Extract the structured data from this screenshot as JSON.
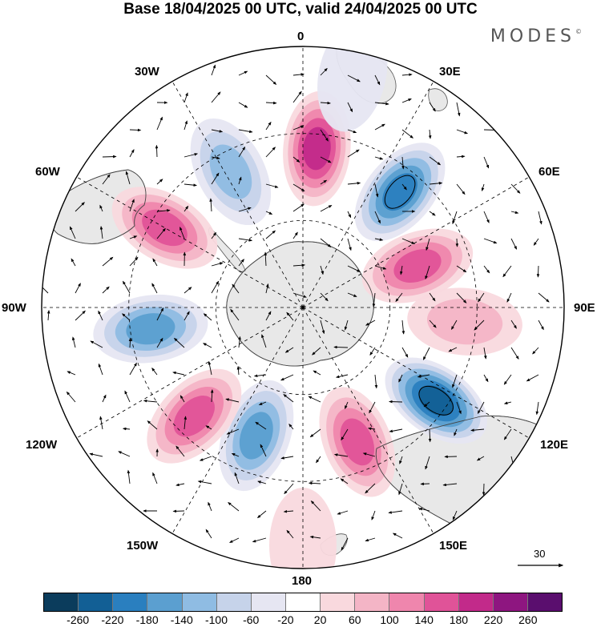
{
  "title": "Base 18/04/2025 00 UTC, valid 24/04/2025 00 UTC",
  "brand": "MODES",
  "brand_mark": "©",
  "longitude_labels": [
    "0",
    "30E",
    "60E",
    "90E",
    "120E",
    "150E",
    "180",
    "150W",
    "120W",
    "90W",
    "60W",
    "30W"
  ],
  "reference_vector": "30",
  "colorbar": {
    "colors": [
      "#0b3c5c",
      "#125f95",
      "#2a7fbf",
      "#5b9fd0",
      "#8fbce3",
      "#c6d3ea",
      "#e6e6f2",
      "#ffffff",
      "#f9d9de",
      "#f4b5c6",
      "#ef86ad",
      "#e05398",
      "#c22a8a",
      "#8e1680",
      "#5a0e6e"
    ],
    "tick_labels": [
      "-260",
      "-220",
      "-180",
      "-140",
      "-100",
      "-60",
      "-20",
      "20",
      "60",
      "100",
      "140",
      "180",
      "220",
      "260"
    ]
  },
  "anomaly_centers": [
    {
      "lon": 5,
      "colat_deg": 55,
      "value": 190,
      "sign": "positive"
    },
    {
      "lon": 40,
      "colat_deg": 52,
      "value": -200,
      "sign": "negative"
    },
    {
      "lon": 70,
      "colat_deg": 42,
      "value": 150,
      "sign": "positive"
    },
    {
      "lon": 95,
      "colat_deg": 56,
      "value": 90,
      "sign": "positive"
    },
    {
      "lon": 125,
      "colat_deg": 56,
      "value": -240,
      "sign": "negative"
    },
    {
      "lon": 158,
      "colat_deg": 50,
      "value": 150,
      "sign": "positive"
    },
    {
      "lon": 200,
      "colat_deg": 47,
      "value": -160,
      "sign": "negative"
    },
    {
      "lon": 225,
      "colat_deg": 53,
      "value": 170,
      "sign": "positive"
    },
    {
      "lon": 262,
      "colat_deg": 53,
      "value": -160,
      "sign": "negative"
    },
    {
      "lon": 300,
      "colat_deg": 55,
      "value": 160,
      "sign": "positive"
    },
    {
      "lon": 332,
      "colat_deg": 53,
      "value": -120,
      "sign": "negative"
    },
    {
      "lon": 180,
      "colat_deg": 82,
      "value": 40,
      "sign": "positive"
    },
    {
      "lon": 12,
      "colat_deg": 82,
      "value": -40,
      "sign": "negative"
    }
  ]
}
